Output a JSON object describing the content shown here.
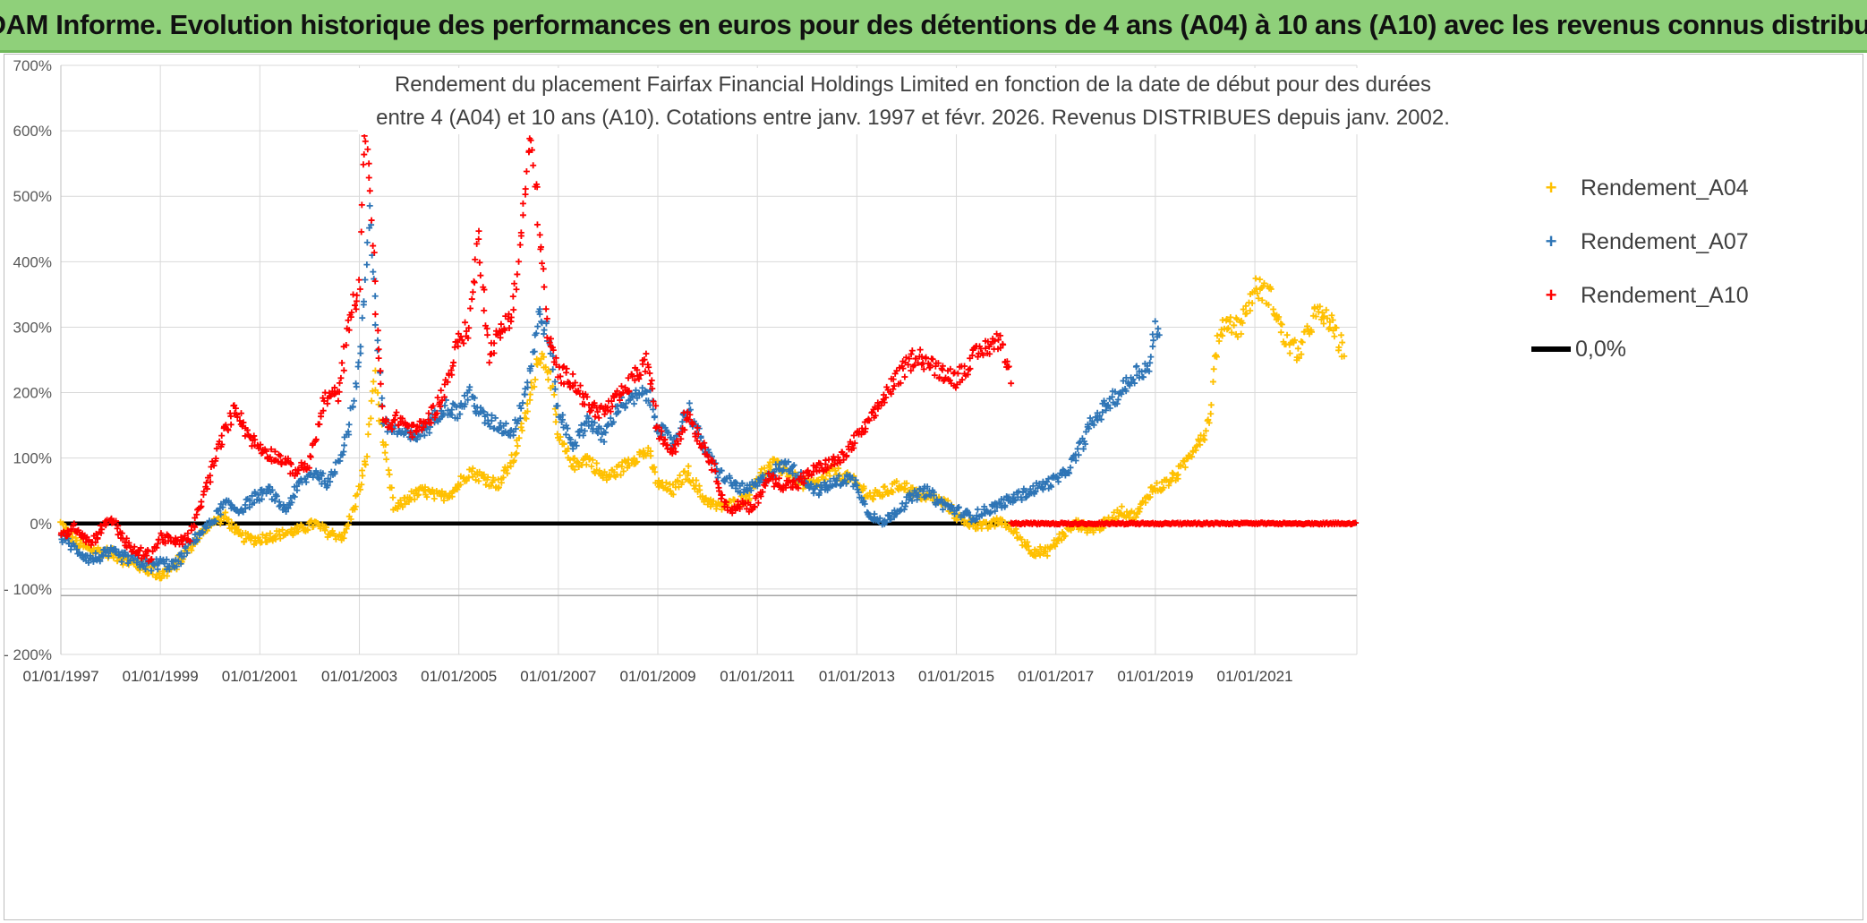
{
  "banner_title": "ADAM Informe. Evolution historique des performances en euros pour des détentions de 4 ans (A04) à 10 ans (A10) avec les revenus connus distribués",
  "chart_data": {
    "type": "scatter",
    "title_line1": "Rendement du placement Fairfax Financial Holdings Limited en fonction de la date de début pour des durées",
    "title_line2": "entre 4 (A04) et 10 ans (A10). Cotations entre janv. 1997 et févr. 2026. Revenus DISTRIBUES depuis janv. 2002.",
    "xlabel": "",
    "ylabel": "",
    "xlim": [
      1997.0,
      2023.05
    ],
    "ylim": [
      -200,
      700
    ],
    "x_ticks": [
      1997,
      1999,
      2001,
      2003,
      2005,
      2007,
      2009,
      2011,
      2013,
      2015,
      2017,
      2019,
      2021
    ],
    "x_tick_labels": [
      "01/01/1997",
      "01/01/1999",
      "01/01/2001",
      "01/01/2003",
      "01/01/2005",
      "01/01/2007",
      "01/01/2009",
      "01/01/2011",
      "01/01/2013",
      "01/01/2015",
      "01/01/2017",
      "01/01/2019",
      "01/01/2021"
    ],
    "y_ticks": [
      700,
      600,
      500,
      400,
      300,
      200,
      100,
      0,
      -100,
      -200
    ],
    "y_tick_labels": [
      "700%",
      "600%",
      "500%",
      "400%",
      "300%",
      "200%",
      "100%",
      "0%",
      "- 100%",
      "- 200%"
    ],
    "grid": true,
    "legend_position": "top-right",
    "series": [
      {
        "name": "Rendement_A04",
        "color": "#ffc000",
        "x": [
          1997.0,
          1997.3,
          1997.6,
          1998.0,
          1998.4,
          1998.8,
          1999.0,
          1999.3,
          1999.6,
          2000.0,
          2000.3,
          2000.6,
          2000.9,
          2001.2,
          2001.5,
          2001.8,
          2002.1,
          2002.4,
          2002.7,
          2002.95,
          2003.15,
          2003.3,
          2003.45,
          2003.7,
          2004.0,
          2004.3,
          2004.6,
          2004.9,
          2005.2,
          2005.5,
          2005.8,
          2006.1,
          2006.4,
          2006.6,
          2006.8,
          2007.0,
          2007.3,
          2007.6,
          2007.9,
          2008.2,
          2008.5,
          2008.8,
          2009.0,
          2009.3,
          2009.6,
          2009.9,
          2010.2,
          2010.5,
          2010.8,
          2011.0,
          2011.3,
          2011.6,
          2011.9,
          2012.2,
          2012.5,
          2012.8,
          2013.0,
          2013.3,
          2013.6,
          2013.9,
          2014.2,
          2014.5,
          2014.8,
          2015.0,
          2015.3,
          2015.6,
          2015.9,
          2016.2,
          2016.5,
          2016.8,
          2017.1,
          2017.4,
          2017.7,
          2018.0,
          2018.3,
          2018.6,
          2018.9,
          2019.2,
          2019.5,
          2019.8,
          2020.0,
          2020.1,
          2020.2,
          2020.4,
          2020.7,
          2021.0,
          2021.3,
          2021.6,
          2021.9,
          2022.2,
          2022.5,
          2022.8
        ],
        "values": [
          0,
          -30,
          -40,
          -45,
          -60,
          -70,
          -80,
          -65,
          -35,
          0,
          10,
          -20,
          -25,
          -20,
          -15,
          -10,
          0,
          -15,
          -20,
          40,
          100,
          230,
          140,
          20,
          40,
          50,
          40,
          50,
          80,
          70,
          60,
          100,
          180,
          260,
          240,
          130,
          90,
          100,
          70,
          80,
          100,
          110,
          60,
          50,
          80,
          40,
          25,
          30,
          40,
          70,
          90,
          80,
          60,
          60,
          80,
          70,
          60,
          40,
          50,
          60,
          45,
          40,
          30,
          10,
          0,
          -5,
          5,
          -15,
          -40,
          -45,
          -20,
          0,
          -10,
          0,
          20,
          10,
          50,
          60,
          80,
          120,
          140,
          170,
          260,
          310,
          300,
          360,
          350,
          280,
          260,
          320,
          310,
          260
        ]
      },
      {
        "name": "Rendement_A07",
        "color": "#2e75b6",
        "x": [
          1997.0,
          1997.3,
          1997.6,
          1998.0,
          1998.4,
          1998.8,
          1999.0,
          1999.3,
          1999.6,
          2000.0,
          2000.3,
          2000.6,
          2000.9,
          2001.2,
          2001.5,
          2001.8,
          2002.1,
          2002.4,
          2002.6,
          2002.8,
          2003.0,
          2003.1,
          2003.2,
          2003.35,
          2003.5,
          2003.8,
          2004.1,
          2004.4,
          2004.7,
          2005.0,
          2005.2,
          2005.5,
          2005.8,
          2006.1,
          2006.4,
          2006.6,
          2006.8,
          2007.0,
          2007.3,
          2007.6,
          2007.9,
          2008.2,
          2008.5,
          2008.8,
          2009.0,
          2009.3,
          2009.6,
          2009.9,
          2010.2,
          2010.5,
          2010.8,
          2011.0,
          2011.3,
          2011.6,
          2011.9,
          2012.2,
          2012.5,
          2012.8,
          2013.0,
          2013.2,
          2013.5,
          2013.8,
          2014.1,
          2014.4,
          2014.7,
          2015.0,
          2015.3,
          2015.6,
          2015.9,
          2016.2,
          2016.5,
          2016.8,
          2017.1,
          2017.4,
          2017.7,
          2018.0,
          2018.3,
          2018.6,
          2018.9,
          2019.0,
          2019.1
        ],
        "values": [
          -20,
          -40,
          -55,
          -45,
          -55,
          -65,
          -60,
          -65,
          -30,
          0,
          30,
          20,
          40,
          50,
          20,
          60,
          80,
          60,
          100,
          150,
          250,
          350,
          490,
          290,
          150,
          140,
          130,
          150,
          180,
          170,
          200,
          160,
          150,
          140,
          220,
          320,
          290,
          170,
          120,
          160,
          130,
          180,
          190,
          200,
          150,
          120,
          180,
          120,
          80,
          60,
          50,
          60,
          80,
          90,
          70,
          50,
          60,
          70,
          60,
          20,
          0,
          20,
          40,
          50,
          30,
          20,
          10,
          20,
          30,
          40,
          50,
          60,
          70,
          100,
          150,
          180,
          200,
          230,
          240,
          310,
          270
        ]
      },
      {
        "name": "Rendement_A10",
        "color": "#ff0000",
        "x": [
          1997.0,
          1997.3,
          1997.6,
          1998.0,
          1998.4,
          1998.8,
          1999.0,
          1999.3,
          1999.6,
          1999.9,
          2000.2,
          2000.5,
          2000.8,
          2001.1,
          2001.4,
          2001.7,
          2002.0,
          2002.3,
          2002.6,
          2002.8,
          2003.0,
          2003.1,
          2003.2,
          2003.35,
          2003.5,
          2003.8,
          2004.1,
          2004.4,
          2004.7,
          2005.0,
          2005.2,
          2005.4,
          2005.6,
          2005.9,
          2006.1,
          2006.3,
          2006.45,
          2006.6,
          2006.8,
          2007.0,
          2007.3,
          2007.6,
          2007.9,
          2008.2,
          2008.5,
          2008.8,
          2009.0,
          2009.3,
          2009.6,
          2009.9,
          2010.1,
          2010.4,
          2010.7,
          2010.9,
          2011.2,
          2011.5,
          2011.8,
          2012.1,
          2012.4,
          2012.7,
          2013.0,
          2013.3,
          2013.6,
          2013.9,
          2014.2,
          2014.5,
          2014.8,
          2015.0,
          2015.3,
          2015.6,
          2015.9,
          2016.1
        ],
        "values": [
          -20,
          -5,
          -30,
          10,
          -40,
          -50,
          -20,
          -30,
          -20,
          50,
          120,
          180,
          130,
          110,
          100,
          80,
          90,
          190,
          200,
          320,
          360,
          600,
          550,
          300,
          150,
          160,
          140,
          160,
          200,
          280,
          300,
          440,
          260,
          300,
          330,
          480,
          590,
          470,
          280,
          230,
          220,
          180,
          170,
          190,
          220,
          250,
          140,
          110,
          170,
          120,
          90,
          20,
          30,
          20,
          70,
          60,
          60,
          80,
          90,
          100,
          130,
          160,
          200,
          230,
          260,
          240,
          230,
          220,
          250,
          270,
          280,
          220
        ]
      },
      {
        "name": "Rendement_A10 (0%)",
        "color": "#ff0000",
        "x_range": [
          2016.1,
          2023.05
        ],
        "constant_value": 0
      }
    ],
    "reference_line": {
      "name": "0,0%",
      "value": 0,
      "color": "#000000"
    }
  },
  "legend": [
    {
      "marker": "+",
      "label": "Rendement_A04",
      "color": "#ffc000"
    },
    {
      "marker": "+",
      "label": "Rendement_A07",
      "color": "#2e75b6"
    },
    {
      "marker": "+",
      "label": "Rendement_A10",
      "color": "#ff0000"
    },
    {
      "marker": "line",
      "label": "0,0%",
      "color": "#000000"
    }
  ]
}
